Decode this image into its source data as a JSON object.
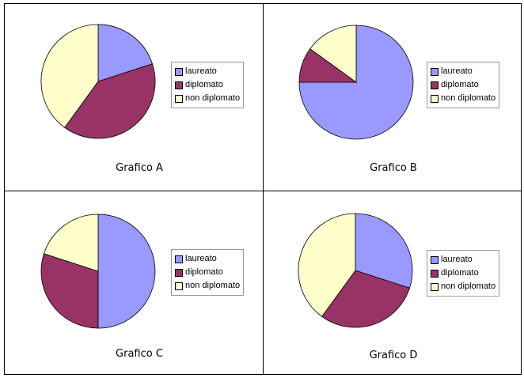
{
  "categories": [
    "laureato",
    "diplomato",
    "non diplomato"
  ],
  "colors": [
    "#9999FF",
    "#993366",
    "#FFFFCC"
  ],
  "chart_data": [
    {
      "type": "pie",
      "title": "Grafico A",
      "categories": [
        "laureato",
        "diplomato",
        "non diplomato"
      ],
      "values": [
        20,
        40,
        40
      ]
    },
    {
      "type": "pie",
      "title": "Grafico B",
      "categories": [
        "laureato",
        "diplomato",
        "non diplomato"
      ],
      "values": [
        75,
        10,
        15
      ]
    },
    {
      "type": "pie",
      "title": "Grafico C",
      "categories": [
        "laureato",
        "diplomato",
        "non diplomato"
      ],
      "values": [
        50,
        30,
        20
      ]
    },
    {
      "type": "pie",
      "title": "Grafico D",
      "categories": [
        "laureato",
        "diplomato",
        "non diplomato"
      ],
      "values": [
        30,
        30,
        40
      ]
    }
  ]
}
